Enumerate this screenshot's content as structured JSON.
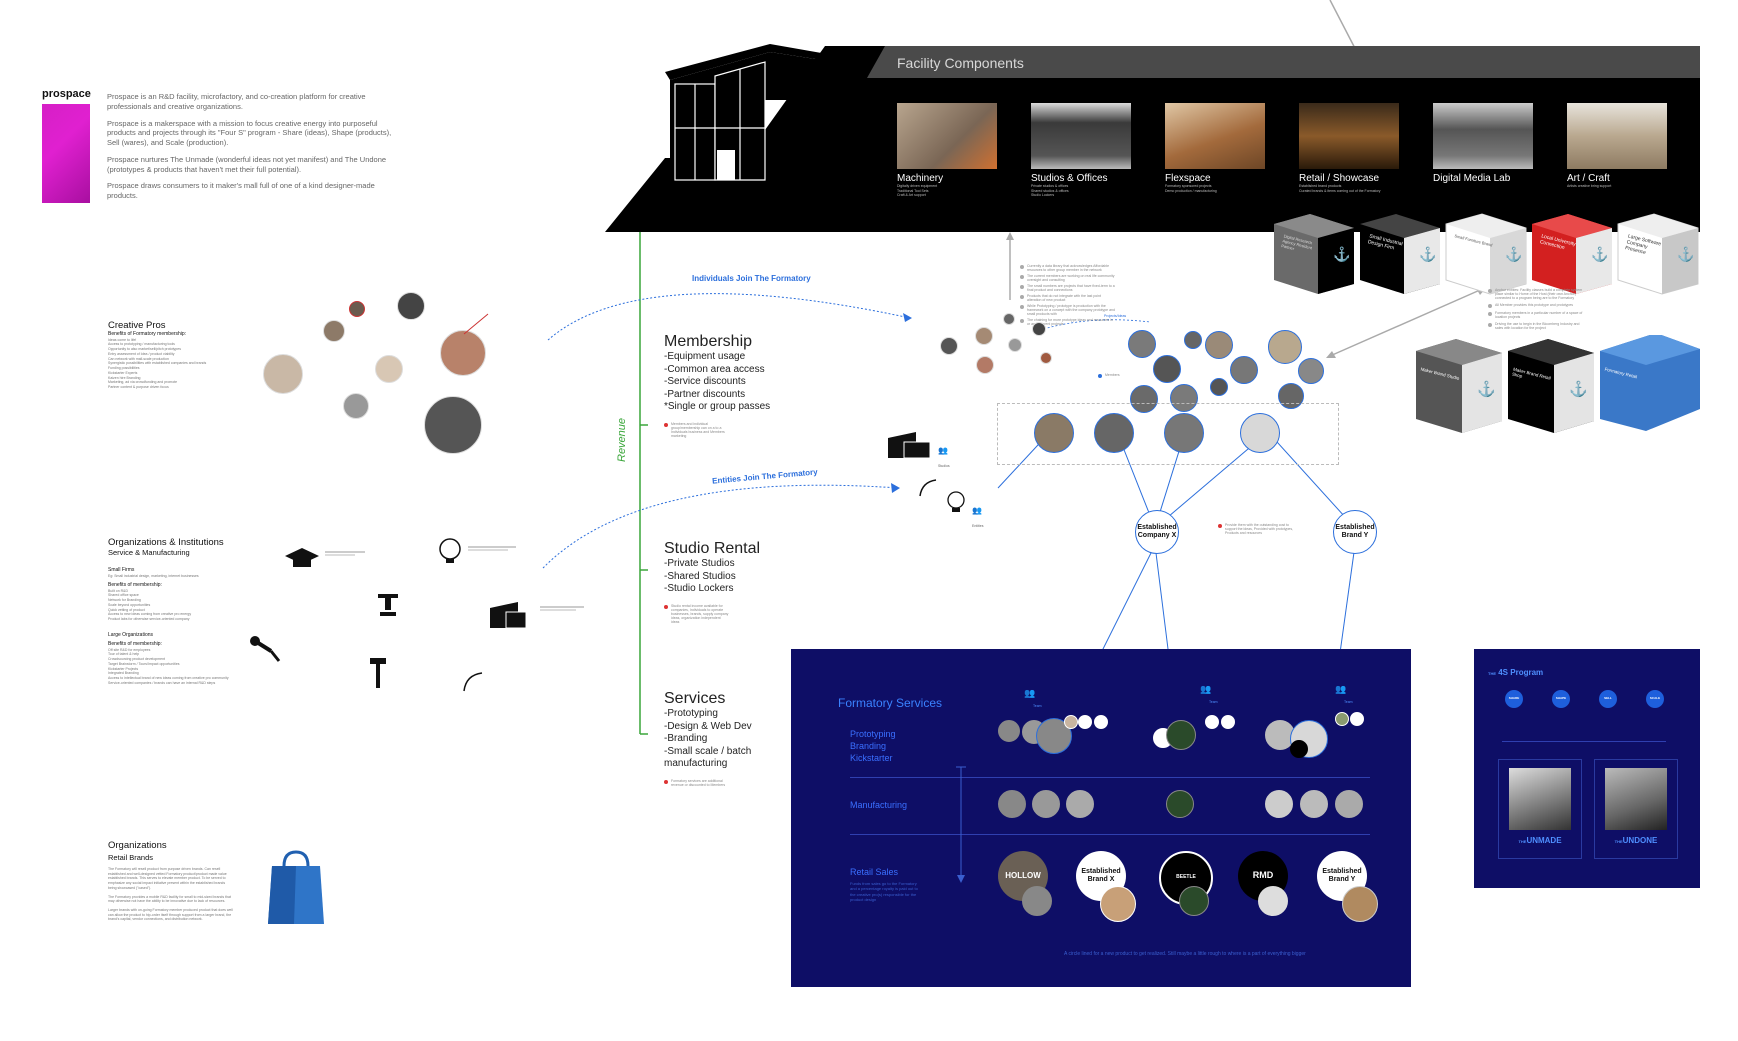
{
  "brand": {
    "logo_text": "prospace",
    "intro": [
      "Prospace is an R&D facility, microfactory, and co-creation platform for creative professionals and creative organizations.",
      "Prospace is a makerspace with a mission to focus creative energy into purposeful products and projects through its \"Four S\" program - Share (ideas), Shape (products), Sell (wares), and Scale (production).",
      "Prospace nurtures The Unmade (wonderful ideas not yet manifest) and The Undone (prototypes & products that haven't met their full potential).",
      "Prospace draws consumers to it maker's mall full of one of a kind designer-made products."
    ]
  },
  "creative_pros": {
    "title": "Creative Pros",
    "subtitle": "Benefits of Formatory membership:",
    "items": [
      "Ideas come to life!",
      "Access to prototyping / manufacturing tools",
      "Opportunity to also market/sell/pitch prototypes",
      "Entry assessment of Idea / product viability",
      "Can network with mall-scale production",
      "Synergistic possibilities with established companies and brands",
      "Funding possibilities",
      "Kickstarter Experts",
      "Kaizen hire Branding",
      "Marketing, ad via crowdfunding and promote",
      "Partner content & purpose driven focus"
    ]
  },
  "organizations": {
    "title": "Organizations & Institutions",
    "subtitle": "Service & Manufacturing",
    "small_firms": "Small Firms",
    "small_firms_desc": "Eg: Small industrial design, marketing, internet businesses",
    "small_benefits_title": "Benefits of membership:",
    "small_benefits": [
      "Built on R&D",
      "Shared office space",
      "Network for Branding",
      "Scale beyond opportunities",
      "Quick vetting of product",
      "Access to new ideas coming from creative pro energy",
      "Product labs for otherwise service-oriented company"
    ],
    "large_orgs": "Large Organizations",
    "large_benefits_title": "Benefits of membership:",
    "large_benefits": [
      "Off site R&D for employees",
      "Tour of talent & help",
      "Crowdsourcing product development",
      "Target Brainstorm / Tours/Impact opportunities",
      "Kickstarter Projects",
      "Integrated Branding",
      "Access to intellectual brand of new ideas coming from creative pro community",
      "Service-oriented companies / brands can have an internal R&D steps"
    ]
  },
  "retail": {
    "title": "Organizations",
    "subtitle": "Retail Brands",
    "paragraphs": [
      "The Formatory will resell product from purpose driven brands. Can resell established and well-designed vetted Formatory product/product made value established brands. This serves to elevate member product. To be served to emphasize any social impact initiative present within the established brands being showcased (\"cased\").",
      "The Formatory provides a mobile R&D facility for small to mid-sized brands that may otherwise not have the ability to be innovative due to lack of resources.",
      "Larger brands with on-going Formatory member produced product that does well can allow the product to hip-order itself through support from a larger brand, the brand's capital, vendor connections, and distribution network."
    ]
  },
  "revenue": {
    "axis_label": "Revenue",
    "membership": {
      "title": "Membership",
      "items": [
        "-Equipment usage",
        "-Common area access",
        "-Service discounts",
        "-Partner discounts",
        "*Single or group passes"
      ],
      "note": "Members and individual group/membership can on a to a Individuals business and Members marketing"
    },
    "studio": {
      "title": "Studio Rental",
      "items": [
        "-Private Studios",
        "-Shared Studios",
        "-Studio Lockers"
      ],
      "note": "Studio rental income available for companies, Individuals to operate businesses, brands, supply company ideas, organization independent ideas"
    },
    "services": {
      "title": "Services",
      "items": [
        "-Prototyping",
        "-Design & Web Dev",
        "-Branding",
        "-Small scale / batch",
        "manufacturing"
      ],
      "note": "Formatory services are additional revenue or discounted to Members"
    }
  },
  "flows": {
    "individuals": "Individuals Join The Formatory",
    "entities": "Entities Join The Formatory",
    "projects": "Projects/Ideas"
  },
  "facility": {
    "title": "Facility Components",
    "components": [
      {
        "label": "Machinery",
        "sub": [
          "Digitally driven equipment",
          "Traditional Tool Sets",
          "Craft & Art support"
        ]
      },
      {
        "label": "Studios & Offices",
        "sub": [
          "Private studios & offices",
          "Shared studios & offices",
          "Studio Lockers"
        ]
      },
      {
        "label": "Flexspace",
        "sub": [
          "Formatory sponsored projects",
          "Demo production / manufacturing"
        ]
      },
      {
        "label": "Retail / Showcase",
        "sub": [
          "Established brand products",
          "Curated brands & items coming out of the Formatory"
        ]
      },
      {
        "label": "Digital Media Lab",
        "sub": []
      },
      {
        "label": "Art / Craft",
        "sub": [
          "Artists creative bring support"
        ]
      }
    ],
    "anchor_cubes": [
      "Digital Research Agency Resident Partner",
      "Small Industrial Design Firm",
      "Small Furniture Brand",
      "Local University Connection",
      "Large Software Company Presence"
    ],
    "lower_cubes": [
      "Maker Brand Studio",
      "Maker Brand Retail Shop",
      "Formatory Retail"
    ],
    "notes_upper": [
      "Currently a data library that acknowledges Affordable resources to other group member in the network",
      "The current members are working on real life community oversight and consulting",
      "The small numbers are projects that have fixed-term to a final product and connections",
      "Products that do not integrate with the last point alteration of new product",
      "While Prototyping / prototype is production with the framework on a concept with the company prototype and small products with",
      "The chaining for more prototype ideas and resources in or any different projects"
    ],
    "notes_right": [
      "Anchor entities: Facility classes build a complete system place similar to Home of the Host (their own Anchor) connected to a program being are to the Formatory",
      "All Member provides this prototype and prototypes",
      "Formatory members in a particular number of a space of location projects",
      "Driving the use to begin in the Bloomberg Industry and sales with location for the project"
    ]
  },
  "network": {
    "company_x": "Established Company X",
    "brand_y": "Established Brand Y",
    "note": "Provide them with the outstanding cost to support the ideas, Provided with prototypes, Products and resources",
    "members_label": "Members",
    "studios_label": "Studios",
    "entities_label": "Entities"
  },
  "formatory_services": {
    "title": "Formatory Services",
    "rows": [
      {
        "label": [
          "Prototyping",
          "Branding",
          "Kickstarter"
        ]
      },
      {
        "label": [
          "Manufacturing"
        ]
      },
      {
        "label": [
          "Retail Sales"
        ],
        "desc": "Funds from sales go to the Formatory and a percentage royalty is paid out to the creative pro(s) responsible for the product design"
      }
    ],
    "brands": [
      "HOLLOW",
      "Established Brand X",
      "BEETLE",
      "RMD",
      "Established Brand Y"
    ],
    "footer": "A circle lined for a new product to get realized. Still maybe a little rough to where is a part of everything bigger",
    "crew_label": "Team"
  },
  "program_4s": {
    "title": "4S Program",
    "prefix": "THE",
    "steps": [
      "SHARE",
      "SHAPE",
      "SELL",
      "SCALE"
    ],
    "cards": [
      {
        "the": "THE",
        "label": "UNMADE"
      },
      {
        "the": "THE",
        "label": "UNDONE"
      }
    ]
  },
  "colors": {
    "accent_blue": "#2c6fdc",
    "panel_navy": "#0e0e66",
    "revenue_green": "#3aa63a",
    "brand_magenta": "#d61fc6",
    "anchor_red": "#d32020",
    "cube_blue": "#3a78c8"
  }
}
